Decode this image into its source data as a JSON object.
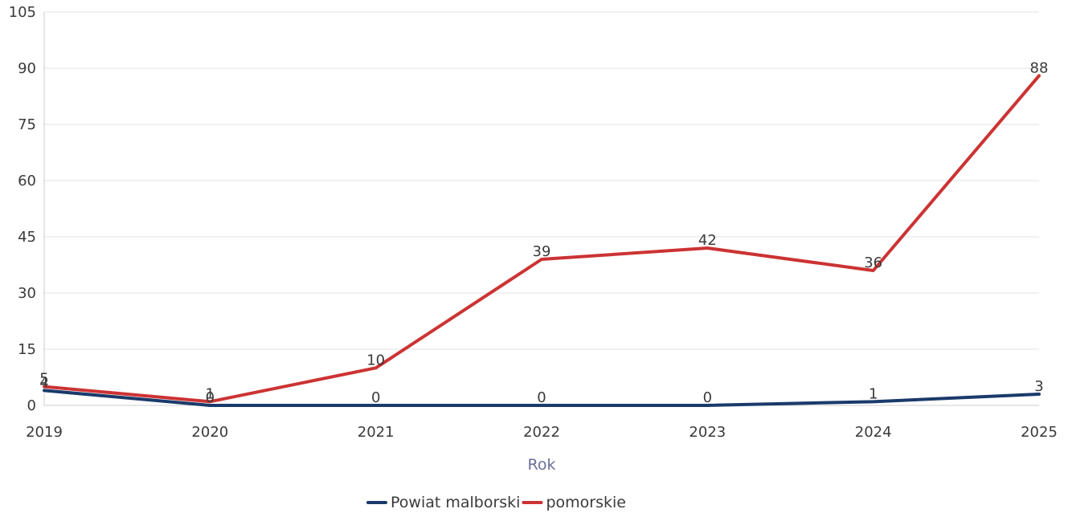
{
  "chart_data": {
    "type": "line",
    "title": "",
    "xlabel": "Rok",
    "ylabel": "",
    "categories": [
      "2019",
      "2020",
      "2021",
      "2022",
      "2023",
      "2024",
      "2025"
    ],
    "ylim": [
      0,
      105
    ],
    "yticks": [
      0,
      15,
      30,
      45,
      60,
      75,
      90,
      105
    ],
    "grid": true,
    "legend_position": "bottom-center",
    "series": [
      {
        "name": "Powiat malborski",
        "color": "#1a3a6b",
        "values": [
          4,
          0,
          0,
          0,
          0,
          1,
          3
        ]
      },
      {
        "name": "pomorskie",
        "color": "#cc3333",
        "values": [
          5,
          1,
          10,
          39,
          42,
          36,
          88
        ]
      }
    ]
  }
}
